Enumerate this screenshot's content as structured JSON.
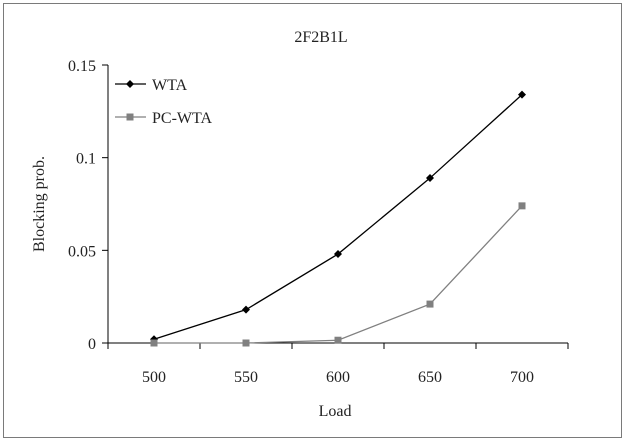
{
  "chart_data": {
    "type": "line",
    "title": "2F2B1L",
    "xlabel": "Load",
    "ylabel": "Blocking prob.",
    "x": [
      500,
      550,
      600,
      650,
      700
    ],
    "xlim": [
      475,
      725
    ],
    "ylim": [
      0,
      0.15
    ],
    "yticks": [
      "0",
      "0.05",
      "0.1",
      "0.15"
    ],
    "xticks": [
      "500",
      "550",
      "600",
      "650",
      "700"
    ],
    "grid": false,
    "legend_position": "top-left",
    "series": [
      {
        "name": "WTA",
        "marker": "diamond",
        "color": "#000000",
        "values": [
          0.002,
          0.018,
          0.048,
          0.089,
          0.134
        ]
      },
      {
        "name": "PC-WTA",
        "marker": "square",
        "color": "#808080",
        "values": [
          0.0,
          0.0,
          0.0015,
          0.021,
          0.074
        ]
      }
    ]
  }
}
